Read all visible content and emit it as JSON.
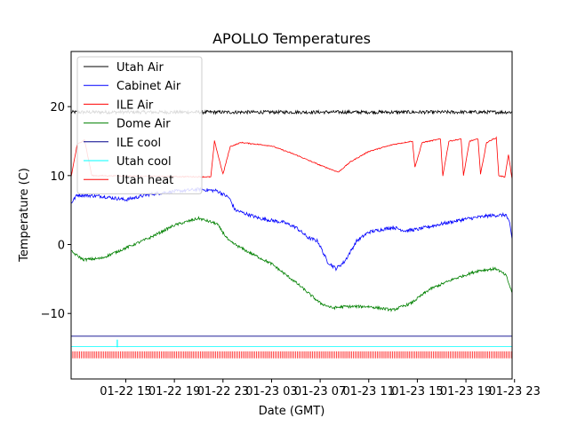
{
  "chart_data": {
    "type": "line",
    "title": "APOLLO Temperatures",
    "xlabel": "Date (GMT)",
    "ylabel": "Temperature (C)",
    "x_unit": "hours since 2009-01-22 10:00 GMT",
    "xlim": [
      1.5,
      37.8
    ],
    "ylim": [
      -19.5,
      28
    ],
    "y_ticks": [
      -10,
      0,
      10,
      20
    ],
    "x_ticks": [
      {
        "x": 6,
        "label": "01-22 15"
      },
      {
        "x": 10,
        "label": "01-22 19"
      },
      {
        "x": 14,
        "label": "01-22 23"
      },
      {
        "x": 18,
        "label": "01-23 03"
      },
      {
        "x": 22,
        "label": "01-23 07"
      },
      {
        "x": 26,
        "label": "01-23 11"
      },
      {
        "x": 30,
        "label": "01-23 15"
      },
      {
        "x": 34,
        "label": "01-23 19"
      },
      {
        "x": 38,
        "label": "01-23 23"
      }
    ],
    "legend_position": "top-left",
    "series": [
      {
        "name": "Utah Air",
        "color": "#000000",
        "points": [
          [
            1.5,
            19.2
          ],
          [
            37.8,
            19.2
          ]
        ],
        "noise": 0.5
      },
      {
        "name": "Cabinet Air",
        "color": "#0000ff",
        "points": [
          [
            1.5,
            6.0
          ],
          [
            2.0,
            7.2
          ],
          [
            4,
            7.0
          ],
          [
            6,
            6.5
          ],
          [
            8,
            7.3
          ],
          [
            10,
            7.7
          ],
          [
            12,
            8.0
          ],
          [
            13.5,
            7.8
          ],
          [
            14.5,
            6.8
          ],
          [
            15,
            5.0
          ],
          [
            17,
            3.8
          ],
          [
            19,
            3.2
          ],
          [
            20,
            2.5
          ],
          [
            21,
            1.0
          ],
          [
            21.8,
            0.5
          ],
          [
            22.6,
            -2.5
          ],
          [
            23.3,
            -3.5
          ],
          [
            24,
            -2.5
          ],
          [
            25,
            0.5
          ],
          [
            26,
            1.8
          ],
          [
            28,
            2.5
          ],
          [
            29,
            2.0
          ],
          [
            30,
            2.2
          ],
          [
            32,
            3.0
          ],
          [
            34,
            3.7
          ],
          [
            36,
            4.2
          ],
          [
            37.3,
            4.3
          ],
          [
            37.6,
            3.0
          ],
          [
            37.8,
            0.8
          ]
        ],
        "noise": 0.5
      },
      {
        "name": "ILE Air",
        "color": "#ff0000",
        "points": [
          [
            1.5,
            9.8
          ],
          [
            2.0,
            14.5
          ],
          [
            2.6,
            15.2
          ],
          [
            3.2,
            10.0
          ],
          [
            13.0,
            9.8
          ],
          [
            13.3,
            15.0
          ],
          [
            14.0,
            10.2
          ],
          [
            14.6,
            14.2
          ],
          [
            15.5,
            14.8
          ],
          [
            18,
            14.3
          ],
          [
            20,
            13.0
          ],
          [
            22,
            11.5
          ],
          [
            23.5,
            10.5
          ],
          [
            24.5,
            12.0
          ],
          [
            26,
            13.5
          ],
          [
            28,
            14.5
          ],
          [
            29.6,
            15.0
          ],
          [
            29.8,
            11.2
          ],
          [
            30.4,
            14.8
          ],
          [
            31.9,
            15.3
          ],
          [
            32.1,
            10.0
          ],
          [
            32.6,
            15.0
          ],
          [
            33.6,
            15.3
          ],
          [
            33.8,
            10.0
          ],
          [
            34.3,
            15.0
          ],
          [
            35.0,
            15.3
          ],
          [
            35.2,
            10.2
          ],
          [
            35.7,
            14.8
          ],
          [
            36.5,
            15.5
          ],
          [
            36.7,
            10.0
          ],
          [
            37.2,
            9.8
          ],
          [
            37.5,
            13.0
          ],
          [
            37.8,
            9.5
          ]
        ],
        "noise": 0.15
      },
      {
        "name": "Dome Air",
        "color": "#008000",
        "points": [
          [
            1.5,
            -1.0
          ],
          [
            2.5,
            -2.2
          ],
          [
            4,
            -2.0
          ],
          [
            6,
            -0.5
          ],
          [
            8,
            1.0
          ],
          [
            10,
            2.8
          ],
          [
            12,
            3.8
          ],
          [
            13.5,
            3.0
          ],
          [
            14.5,
            0.5
          ],
          [
            16,
            -1.0
          ],
          [
            18,
            -2.8
          ],
          [
            20,
            -5.5
          ],
          [
            22,
            -8.5
          ],
          [
            23,
            -9.2
          ],
          [
            24,
            -9.0
          ],
          [
            26,
            -9.0
          ],
          [
            28,
            -9.5
          ],
          [
            29.5,
            -8.5
          ],
          [
            31,
            -6.5
          ],
          [
            33,
            -5.0
          ],
          [
            35,
            -3.8
          ],
          [
            36.5,
            -3.5
          ],
          [
            37.3,
            -4.5
          ],
          [
            37.8,
            -7.0
          ]
        ],
        "noise": 0.4
      },
      {
        "name": "ILE cool",
        "color": "#00008b",
        "points": [
          [
            1.5,
            -13.3
          ],
          [
            37.8,
            -13.3
          ]
        ],
        "noise": 0
      },
      {
        "name": "Utah cool",
        "color": "#00ffff",
        "points": [
          [
            1.5,
            -14.8
          ],
          [
            37.8,
            -14.8
          ]
        ],
        "noise": 0
      },
      {
        "name": "Utah heat",
        "color": "#ff0000",
        "points": [
          [
            1.5,
            -15.5
          ],
          [
            37.8,
            -16.5
          ]
        ],
        "noise": 0
      }
    ]
  }
}
